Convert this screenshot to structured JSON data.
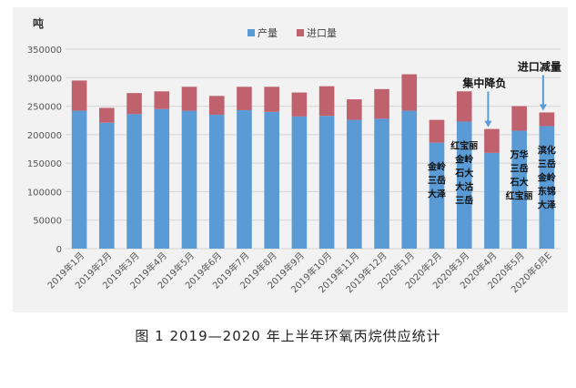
{
  "caption": "图 1  2019—2020 年上半年环氧丙烷供应统计",
  "chart_data": {
    "type": "bar",
    "stacked": true,
    "unit_label": "吨",
    "ylim": [
      0,
      350000
    ],
    "yticks": [
      "0",
      "50000",
      "100000",
      "150000",
      "200000",
      "250000",
      "300000",
      "350000"
    ],
    "grid": true,
    "legend_position": "top-center",
    "colors": {
      "production": "#5b9bd5",
      "import": "#c0616e",
      "background": "#f2f2f2"
    },
    "categories": [
      "2019年1月",
      "2019年2月",
      "2019年3月",
      "2019年4月",
      "2019年5月",
      "2019年6月",
      "2019年7月",
      "2019年8月",
      "2019年9月",
      "2019年10月",
      "2019年11月",
      "2019年12月",
      "2020年1月",
      "2020年2月",
      "2020年3月",
      "2020年4月",
      "2020年5月",
      "2020年6月E"
    ],
    "series": [
      {
        "name": "产量",
        "values": [
          242000,
          221000,
          236000,
          245000,
          242000,
          235000,
          243000,
          240000,
          232000,
          233000,
          226000,
          228000,
          242000,
          186000,
          223000,
          168000,
          207000,
          215000
        ]
      },
      {
        "name": "进口量",
        "values": [
          53000,
          26000,
          37000,
          31000,
          42000,
          33000,
          41000,
          44000,
          42000,
          52000,
          36000,
          52000,
          64000,
          40000,
          53000,
          42000,
          43000,
          24000
        ]
      }
    ],
    "annotations": [
      {
        "text": "集中降负",
        "category": "2020年4月",
        "arrow": true
      },
      {
        "text": "进口减量",
        "category": "2020年6月E",
        "arrow": true
      }
    ],
    "bar_labels": [
      {
        "category": "2020年2月",
        "lines": [
          "金岭",
          "三岳",
          "大泽"
        ]
      },
      {
        "category": "2020年3月",
        "lines": [
          "红宝丽",
          "金岭",
          "石大",
          "大沽",
          "三岳"
        ]
      },
      {
        "category": "2020年5月",
        "lines": [
          "万华",
          "三岳",
          "石大",
          "红宝丽"
        ]
      },
      {
        "category": "2020年6月E",
        "lines": [
          "滨化",
          "三岳",
          "金岭",
          "东锦",
          "大泽"
        ]
      }
    ]
  }
}
